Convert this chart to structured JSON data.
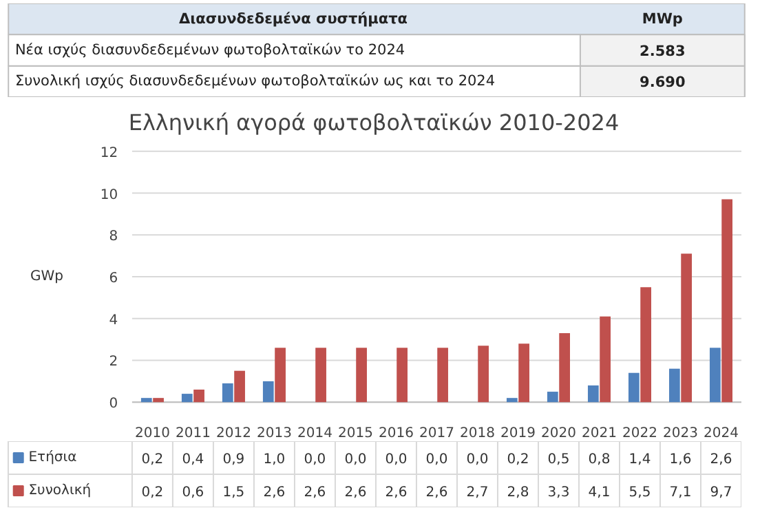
{
  "chart_data": {
    "type": "bar",
    "title": "Ελληνική αγορά φωτοβολταϊκών 2010-2024",
    "ylabel": "GWp",
    "categories": [
      "2010",
      "2011",
      "2012",
      "2013",
      "2014",
      "2015",
      "2016",
      "2017",
      "2018",
      "2019",
      "2020",
      "2021",
      "2022",
      "2023",
      "2024"
    ],
    "series": [
      {
        "name": "Ετήσια",
        "color": "#4f81bd",
        "values": [
          0.2,
          0.4,
          0.9,
          1.0,
          0.0,
          0.0,
          0.0,
          0.0,
          0.0,
          0.2,
          0.5,
          0.8,
          1.4,
          1.6,
          2.6
        ],
        "value_labels": [
          "0,2",
          "0,4",
          "0,9",
          "1,0",
          "0,0",
          "0,0",
          "0,0",
          "0,0",
          "0,0",
          "0,2",
          "0,5",
          "0,8",
          "1,4",
          "1,6",
          "2,6"
        ]
      },
      {
        "name": "Συνολική",
        "color": "#c0504d",
        "values": [
          0.2,
          0.6,
          1.5,
          2.6,
          2.6,
          2.6,
          2.6,
          2.6,
          2.7,
          2.8,
          3.3,
          4.1,
          5.5,
          7.1,
          9.7
        ],
        "value_labels": [
          "0,2",
          "0,6",
          "1,5",
          "2,6",
          "2,6",
          "2,6",
          "2,6",
          "2,6",
          "2,7",
          "2,8",
          "3,3",
          "4,1",
          "5,5",
          "7,1",
          "9,7"
        ]
      }
    ],
    "ylim": [
      0,
      12
    ],
    "yticks": [
      0,
      2,
      4,
      6,
      8,
      10,
      12
    ],
    "grid": "y",
    "legend": "bottom",
    "annotations": [
      "Διασυνδεδεμένα συστήματα",
      "MWp",
      "Νέα ισχύς διασυνδεδεμένων φωτοβολταϊκών το 2024",
      "2.583",
      "Συνολική ισχύς διασυνδεδεμένων φωτοβολταϊκών ως και το 2024",
      "9.690"
    ]
  }
}
